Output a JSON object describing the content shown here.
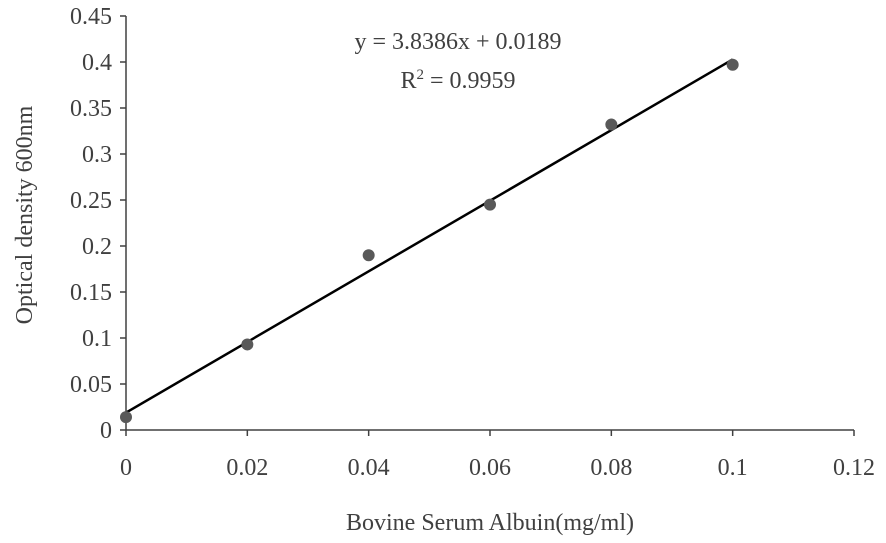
{
  "chart_data": {
    "type": "scatter",
    "xlabel": "Bovine Serum Albuin(mg/ml)",
    "ylabel": "Optical density  600nm",
    "xlim": [
      0,
      0.12
    ],
    "ylim": [
      0,
      0.45
    ],
    "x_ticks": [
      "0",
      "0.02",
      "0.04",
      "0.06",
      "0.08",
      "0.1",
      "0.12"
    ],
    "y_ticks": [
      "0",
      "0.05",
      "0.1",
      "0.15",
      "0.2",
      "0.25",
      "0.3",
      "0.35",
      "0.4",
      "0.45"
    ],
    "grid": false,
    "points": [
      {
        "x": 0,
        "y": 0.014
      },
      {
        "x": 0.02,
        "y": 0.093
      },
      {
        "x": 0.04,
        "y": 0.19
      },
      {
        "x": 0.06,
        "y": 0.245
      },
      {
        "x": 0.08,
        "y": 0.332
      },
      {
        "x": 0.1,
        "y": 0.397
      }
    ],
    "trendline": {
      "slope": 3.8386,
      "intercept": 0.0189,
      "x_range": [
        0,
        0.1
      ]
    },
    "annotations": {
      "equation": "y = 3.8386x + 0.0189",
      "r2_prefix": "R",
      "r2_sup": "2",
      "r2_value": " = 0.9959"
    },
    "colors": {
      "marker": "#595959",
      "line": "#000000",
      "axis": "#404040",
      "text": "#404040"
    }
  }
}
